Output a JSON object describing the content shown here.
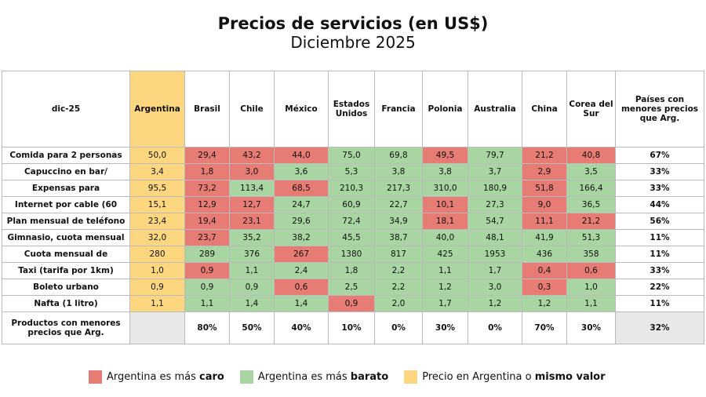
{
  "header": {
    "title": "Precios de servicios (en US$)",
    "subtitle": "Diciembre 2025"
  },
  "table": {
    "columns": [
      "dic-25",
      "Argentina",
      "Brasil",
      "Chile",
      "México",
      "Estados Unidos",
      "Francia",
      "Polonia",
      "Australia",
      "China",
      "Corea del Sur",
      "Países con menores precios que Arg."
    ],
    "argentina_color": "#fcd77f",
    "rows": [
      {
        "cells": [
          "Comida para 2 personas",
          "50,0",
          "29,4",
          "43,2",
          "44,0",
          "75,0",
          "69,8",
          "49,5",
          "79,7",
          "21,2",
          "40,8",
          "67%"
        ],
        "colors": [
          "#e67c73",
          "#e67c73",
          "#e67c73",
          "#a8d5a2",
          "#a8d5a2",
          "#e67c73",
          "#a8d5a2",
          "#e67c73",
          "#e67c73"
        ]
      },
      {
        "cells": [
          "Capuccino en bar/",
          "3,4",
          "1,8",
          "3,0",
          "3,6",
          "5,3",
          "3,8",
          "3,8",
          "3,7",
          "2,9",
          "3,5",
          "33%"
        ],
        "colors": [
          "#e67c73",
          "#e67c73",
          "#a8d5a2",
          "#a8d5a2",
          "#a8d5a2",
          "#a8d5a2",
          "#a8d5a2",
          "#e67c73",
          "#a8d5a2"
        ]
      },
      {
        "cells": [
          "Expensas para",
          "95,5",
          "73,2",
          "113,4",
          "68,5",
          "210,3",
          "217,3",
          "310,0",
          "180,9",
          "51,8",
          "166,4",
          "33%"
        ],
        "colors": [
          "#e67c73",
          "#a8d5a2",
          "#e67c73",
          "#a8d5a2",
          "#a8d5a2",
          "#a8d5a2",
          "#a8d5a2",
          "#e67c73",
          "#a8d5a2"
        ]
      },
      {
        "cells": [
          "Internet por cable (60",
          "15,1",
          "12,9",
          "12,7",
          "24,7",
          "60,9",
          "22,7",
          "10,1",
          "27,3",
          "9,0",
          "36,5",
          "44%"
        ],
        "colors": [
          "#e67c73",
          "#e67c73",
          "#a8d5a2",
          "#a8d5a2",
          "#a8d5a2",
          "#e67c73",
          "#a8d5a2",
          "#e67c73",
          "#a8d5a2"
        ]
      },
      {
        "cells": [
          "Plan mensual de teléfono",
          "23,4",
          "19,4",
          "23,1",
          "29,6",
          "72,4",
          "34,9",
          "18,1",
          "54,7",
          "11,1",
          "21,2",
          "56%"
        ],
        "colors": [
          "#e67c73",
          "#e67c73",
          "#a8d5a2",
          "#a8d5a2",
          "#a8d5a2",
          "#e67c73",
          "#a8d5a2",
          "#e67c73",
          "#e67c73"
        ]
      },
      {
        "cells": [
          "Gimnasio, cuota mensual",
          "32,0",
          "23,7",
          "35,2",
          "38,2",
          "45,5",
          "38,7",
          "40,0",
          "48,1",
          "41,9",
          "51,3",
          "11%"
        ],
        "colors": [
          "#e67c73",
          "#a8d5a2",
          "#a8d5a2",
          "#a8d5a2",
          "#a8d5a2",
          "#a8d5a2",
          "#a8d5a2",
          "#a8d5a2",
          "#a8d5a2"
        ]
      },
      {
        "cells": [
          "Cuota mensual de",
          "280",
          "289",
          "376",
          "267",
          "1380",
          "817",
          "425",
          "1953",
          "436",
          "358",
          "11%"
        ],
        "colors": [
          "#a8d5a2",
          "#a8d5a2",
          "#e67c73",
          "#a8d5a2",
          "#a8d5a2",
          "#a8d5a2",
          "#a8d5a2",
          "#a8d5a2",
          "#a8d5a2"
        ]
      },
      {
        "cells": [
          "Taxi (tarifa por 1km)",
          "1,0",
          "0,9",
          "1,1",
          "2,4",
          "1,8",
          "2,2",
          "1,1",
          "1,7",
          "0,4",
          "0,6",
          "33%"
        ],
        "colors": [
          "#e67c73",
          "#a8d5a2",
          "#a8d5a2",
          "#a8d5a2",
          "#a8d5a2",
          "#a8d5a2",
          "#a8d5a2",
          "#e67c73",
          "#e67c73"
        ]
      },
      {
        "cells": [
          "Boleto urbano",
          "0,9",
          "0,9",
          "0,9",
          "0,6",
          "2,5",
          "2,2",
          "1,2",
          "3,0",
          "0,3",
          "1,0",
          "22%"
        ],
        "colors": [
          "#a8d5a2",
          "#a8d5a2",
          "#e67c73",
          "#a8d5a2",
          "#a8d5a2",
          "#a8d5a2",
          "#a8d5a2",
          "#e67c73",
          "#a8d5a2"
        ]
      },
      {
        "cells": [
          "Nafta (1 litro)",
          "1,1",
          "1,1",
          "1,4",
          "1,4",
          "0,9",
          "2,0",
          "1,7",
          "1,2",
          "1,2",
          "1,1",
          "11%"
        ],
        "colors": [
          "#a8d5a2",
          "#a8d5a2",
          "#a8d5a2",
          "#e67c73",
          "#a8d5a2",
          "#a8d5a2",
          "#a8d5a2",
          "#a8d5a2",
          "#a8d5a2"
        ]
      }
    ],
    "footer": {
      "label": "Productos con menores precios que Arg.",
      "cells": [
        "80%",
        "50%",
        "40%",
        "10%",
        "0%",
        "30%",
        "0%",
        "70%",
        "30%"
      ],
      "total": "32%"
    }
  },
  "legend": [
    {
      "text": "Argentina es más ",
      "bold": "caro",
      "color": "#e67c73"
    },
    {
      "text": "Argentina es más ",
      "bold": "barato",
      "color": "#a8d5a2"
    },
    {
      "text": "Precio en Argentina o ",
      "bold": "mismo valor",
      "color": "#fcd77f"
    }
  ]
}
